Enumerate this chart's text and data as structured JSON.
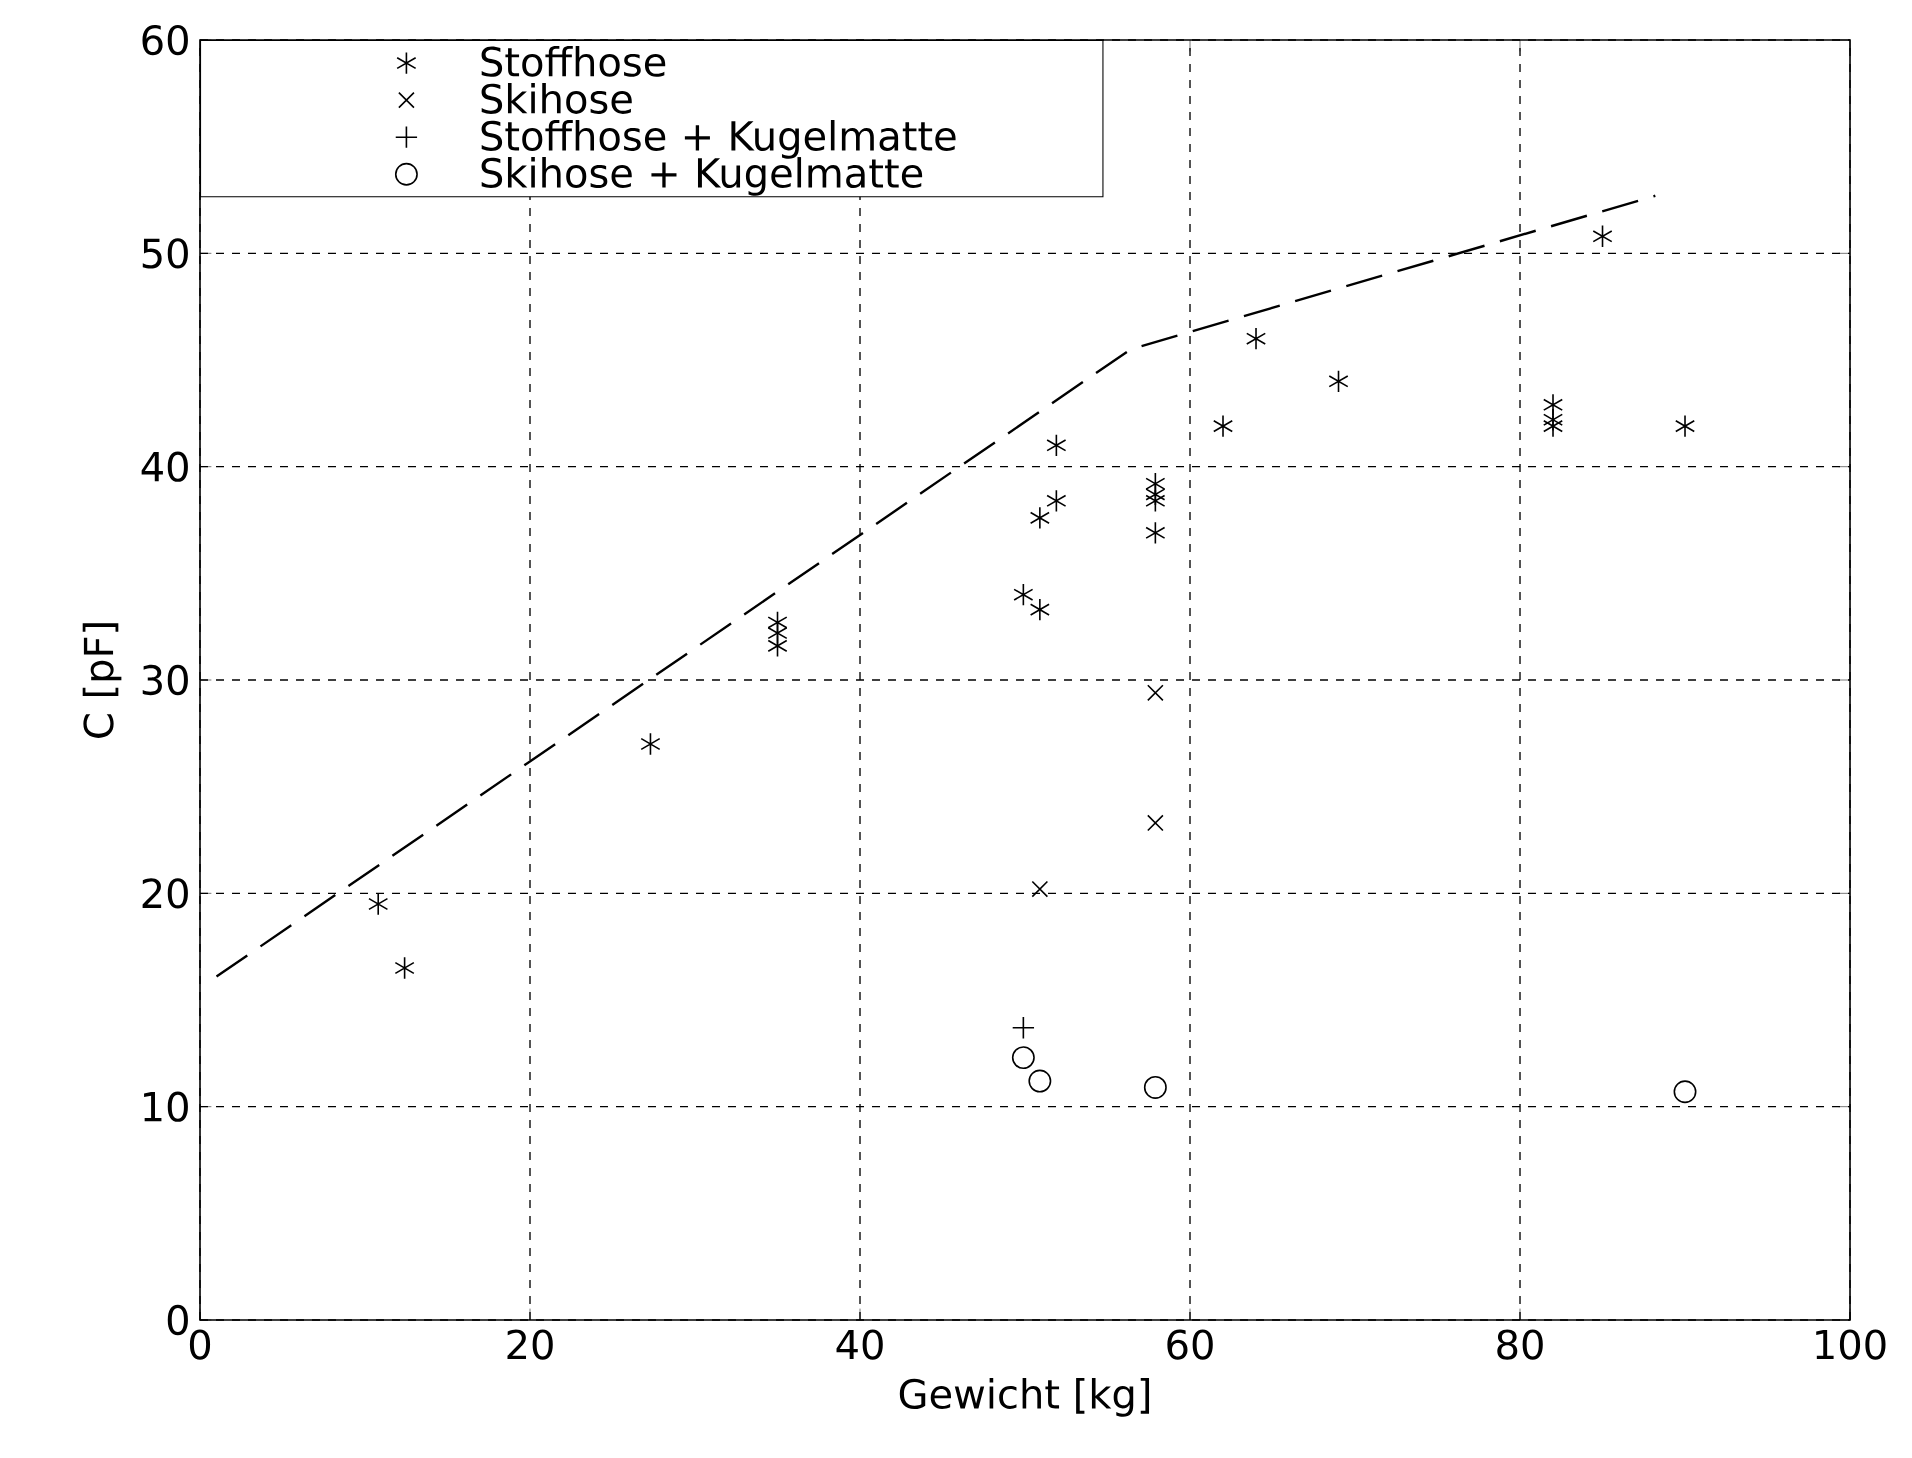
{
  "chart_data": {
    "type": "scatter",
    "xlabel": "Gewicht [kg]",
    "ylabel": "C [pF]",
    "xlim": [
      0,
      100
    ],
    "ylim": [
      0,
      60
    ],
    "xticks": [
      0,
      20,
      40,
      60,
      80,
      100
    ],
    "yticks": [
      0,
      10,
      20,
      30,
      40,
      50,
      60
    ],
    "grid": true,
    "legend": "top left",
    "series": [
      {
        "name": "Stoffhose",
        "color": "#000000",
        "x": [
          10.8,
          12.4,
          27.3,
          35,
          35,
          35,
          49.9,
          50.9,
          50.9,
          51.9,
          51.9,
          57.9,
          57.9,
          57.9,
          57.9,
          62,
          64,
          69,
          82,
          82,
          82,
          85,
          90
        ],
        "values": [
          19.5,
          16.5,
          27,
          32.7,
          32.2,
          31.6,
          34,
          33.3,
          37.6,
          38.4,
          41,
          39.2,
          38.7,
          38.4,
          36.9,
          41.9,
          46,
          44,
          42.9,
          42.2,
          41.9,
          50.8,
          41.9
        ]
      },
      {
        "name": "Skihose",
        "color": "#000000",
        "marker": "cross",
        "x": [
          50.9,
          57.9,
          57.9
        ],
        "values": [
          20.2,
          23.3,
          29.4
        ]
      },
      {
        "name": "Stoffhose + Kugelmatte",
        "color": "#000000",
        "marker": "plus",
        "x": [
          49.9
        ],
        "values": [
          13.7
        ]
      },
      {
        "name": "Skihose + Kugelmatte",
        "color": "#000000",
        "marker": "circle",
        "x": [
          49.9,
          50.9,
          57.9,
          90
        ],
        "values": [
          12.3,
          11.2,
          10.9,
          10.7
        ]
      },
      {
        "type": "line",
        "color": "#000000",
        "marker": "none",
        "line_style": "dashed",
        "x": [
          1,
          56.4,
          88.2
        ],
        "values": [
          16.1,
          45.5,
          52.7
        ]
      }
    ]
  }
}
